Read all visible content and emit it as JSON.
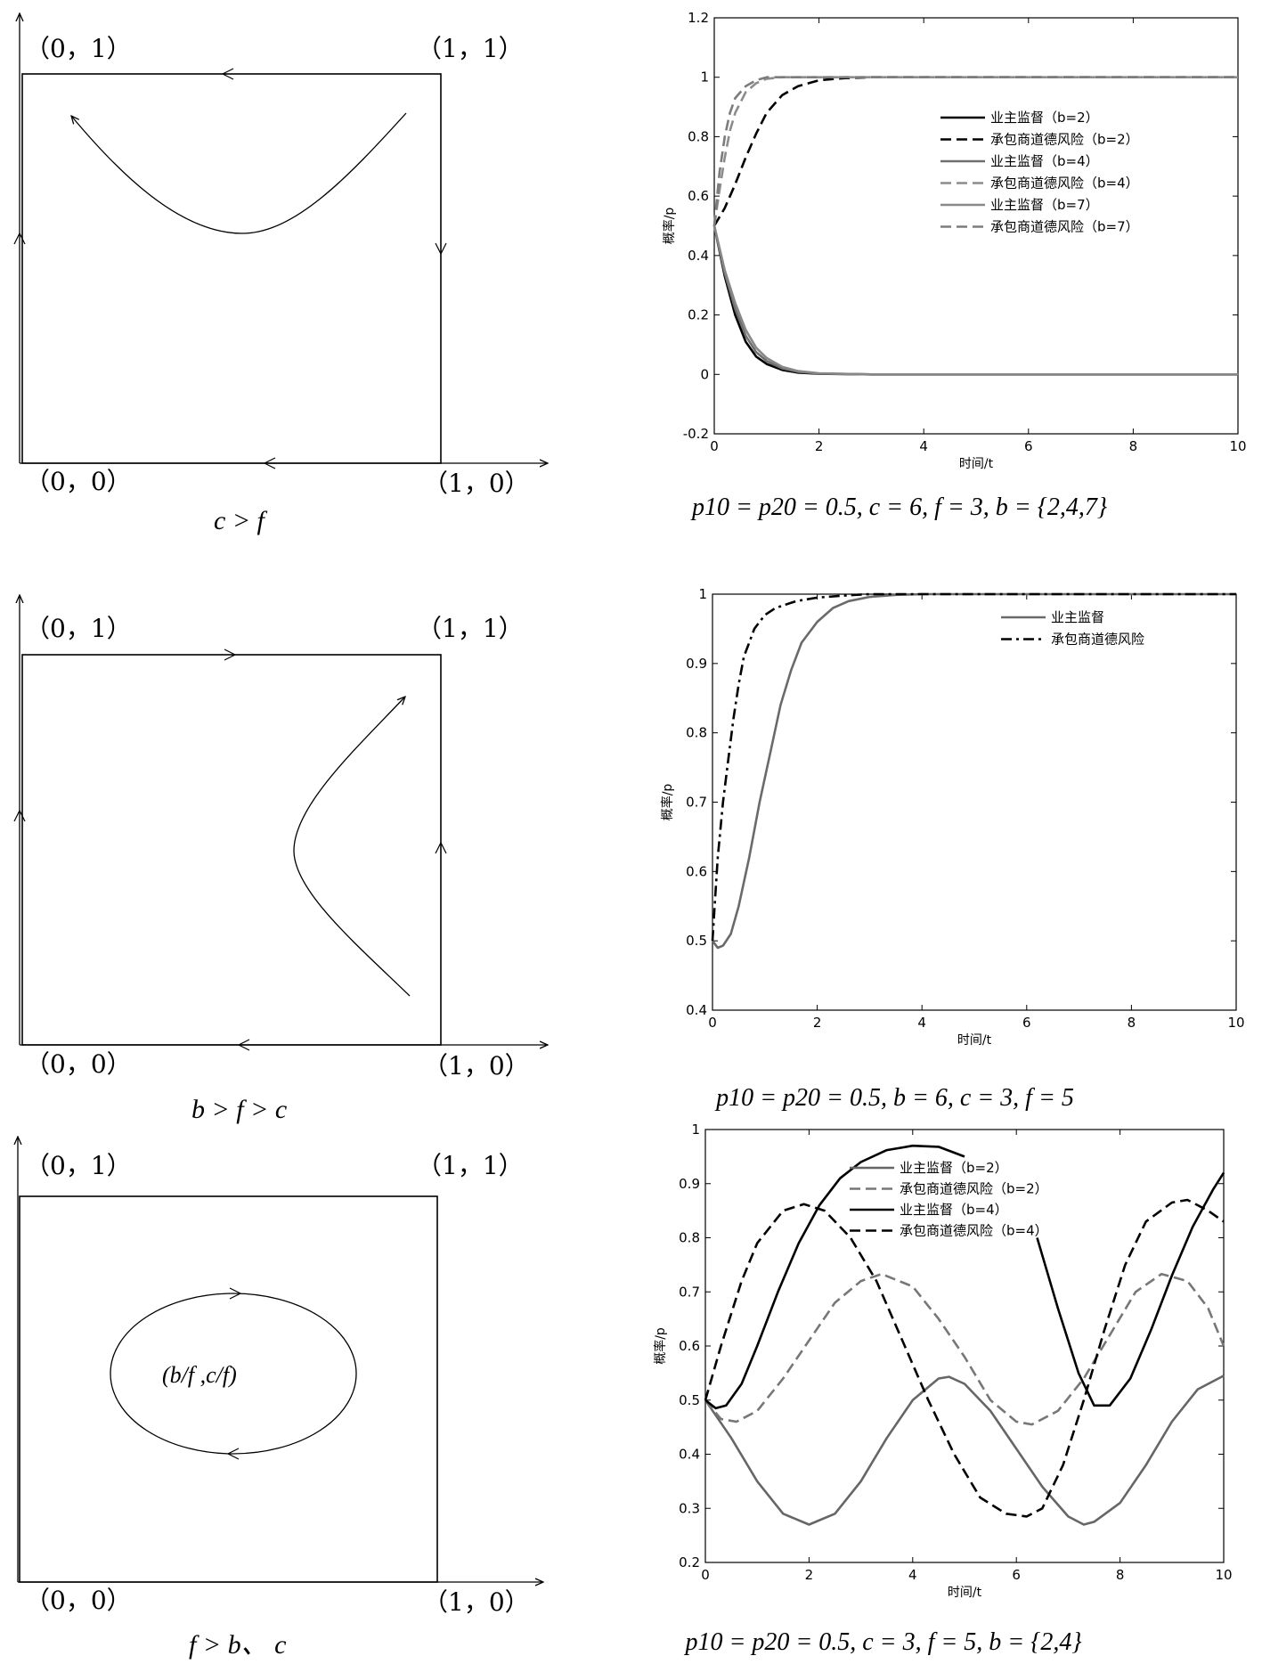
{
  "phase_diagrams": [
    {
      "corner_labels": {
        "top_left": "（0，1）",
        "top_right": "（1，1）",
        "bottom_left": "（0，0）",
        "bottom_right": "（1，0）"
      },
      "condition": "c > f"
    },
    {
      "corner_labels": {
        "top_left": "（0，1）",
        "top_right": "（1，1）",
        "bottom_left": "（0，0）",
        "bottom_right": "（1，0）"
      },
      "condition": "b > f > c"
    },
    {
      "corner_labels": {
        "top_left": "（0，1）",
        "top_right": "（1，1）",
        "bottom_left": "（0，0）",
        "bottom_right": "（1，0）"
      },
      "condition": "f > b、 c",
      "center_label": "(b/f ,c/f)"
    }
  ],
  "chart_data": [
    {
      "type": "line",
      "xlabel": "时间/t",
      "ylabel": "概率/p",
      "xlim": [
        0,
        10
      ],
      "ylim": [
        -0.2,
        1.2
      ],
      "xticks": [
        "0",
        "2",
        "4",
        "6",
        "8",
        "10"
      ],
      "yticks": [
        "-0.2",
        "0",
        "0.2",
        "0.4",
        "0.6",
        "0.8",
        "1",
        "1.2"
      ],
      "legend_position": "upper-right",
      "caption": "p10 = p20 = 0.5, c = 6, f = 3, b = {2,4,7}",
      "series": [
        {
          "name": "业主监督（b=2）",
          "color": "#000000",
          "dash": "solid",
          "x": [
            0,
            0.2,
            0.4,
            0.6,
            0.8,
            1,
            1.3,
            1.6,
            2,
            3,
            4,
            6,
            8,
            10
          ],
          "values": [
            0.5,
            0.33,
            0.2,
            0.11,
            0.06,
            0.035,
            0.015,
            0.006,
            0.002,
            0,
            0,
            0,
            0,
            0
          ]
        },
        {
          "name": "承包商道德风险（b=2）",
          "color": "#000000",
          "dash": "dashed",
          "x": [
            0,
            0.2,
            0.4,
            0.6,
            0.8,
            1,
            1.3,
            1.6,
            2,
            2.5,
            3,
            3.5,
            4,
            6,
            8,
            10
          ],
          "values": [
            0.5,
            0.56,
            0.64,
            0.73,
            0.81,
            0.88,
            0.94,
            0.97,
            0.99,
            0.997,
            1,
            1,
            1,
            1,
            1,
            1
          ]
        },
        {
          "name": "业主监督（b=4）",
          "color": "#6e6e6e",
          "dash": "solid",
          "x": [
            0,
            0.2,
            0.4,
            0.6,
            0.8,
            1,
            1.3,
            1.6,
            2,
            3,
            4,
            6,
            8,
            10
          ],
          "values": [
            0.5,
            0.34,
            0.22,
            0.13,
            0.075,
            0.045,
            0.02,
            0.009,
            0.003,
            0,
            0,
            0,
            0,
            0
          ]
        },
        {
          "name": "承包商道德风险（b=4）",
          "color": "#8c8c8c",
          "dash": "dashed",
          "x": [
            0,
            0.1,
            0.2,
            0.3,
            0.4,
            0.6,
            0.8,
            1,
            1.3,
            1.6,
            2,
            3,
            4,
            6,
            8,
            10
          ],
          "values": [
            0.5,
            0.62,
            0.73,
            0.82,
            0.88,
            0.95,
            0.98,
            0.995,
            1,
            1,
            1,
            1,
            1,
            1,
            1,
            1
          ]
        },
        {
          "name": "业主监督（b=7）",
          "color": "#888888",
          "dash": "solid",
          "x": [
            0,
            0.2,
            0.4,
            0.6,
            0.8,
            1,
            1.3,
            1.6,
            2,
            3,
            4,
            6,
            8,
            10
          ],
          "values": [
            0.5,
            0.35,
            0.24,
            0.15,
            0.09,
            0.055,
            0.025,
            0.011,
            0.004,
            0,
            0,
            0,
            0,
            0
          ]
        },
        {
          "name": "承包商道德风险（b=7）",
          "color": "#7c7c7c",
          "dash": "dashed",
          "x": [
            0,
            0.1,
            0.2,
            0.3,
            0.4,
            0.6,
            0.8,
            1,
            1.3,
            1.6,
            2,
            3,
            4,
            6,
            8,
            10
          ],
          "values": [
            0.5,
            0.68,
            0.8,
            0.88,
            0.93,
            0.97,
            0.99,
            1,
            1,
            1,
            1,
            1,
            1,
            1,
            1,
            1
          ]
        }
      ]
    },
    {
      "type": "line",
      "xlabel": "时间/t",
      "ylabel": "概率/p",
      "xlim": [
        0,
        10
      ],
      "ylim": [
        0.4,
        1
      ],
      "xticks": [
        "0",
        "2",
        "4",
        "6",
        "8",
        "10"
      ],
      "yticks": [
        "0.4",
        "0.5",
        "0.6",
        "0.7",
        "0.8",
        "0.9",
        "1"
      ],
      "legend_position": "upper-right",
      "caption": "p10 = p20 = 0.5, b = 6, c = 3, f = 5",
      "series": [
        {
          "name": "业主监督",
          "color": "#6a6a6a",
          "dash": "solid",
          "x": [
            0,
            0.1,
            0.2,
            0.35,
            0.5,
            0.7,
            0.9,
            1.1,
            1.3,
            1.5,
            1.7,
            2,
            2.3,
            2.6,
            3,
            3.5,
            4,
            5,
            6,
            8,
            10
          ],
          "values": [
            0.5,
            0.49,
            0.493,
            0.51,
            0.55,
            0.62,
            0.7,
            0.77,
            0.84,
            0.89,
            0.93,
            0.96,
            0.98,
            0.99,
            0.996,
            0.999,
            1,
            1,
            1,
            1,
            1
          ]
        },
        {
          "name": "承包商道德风险",
          "color": "#000000",
          "dash": "dashdot",
          "x": [
            0,
            0.05,
            0.1,
            0.2,
            0.3,
            0.4,
            0.5,
            0.6,
            0.7,
            0.8,
            0.9,
            1,
            1.2,
            1.4,
            1.6,
            2,
            2.5,
            3,
            4,
            6,
            8,
            10
          ],
          "values": [
            0.5,
            0.56,
            0.62,
            0.7,
            0.76,
            0.82,
            0.87,
            0.91,
            0.93,
            0.95,
            0.96,
            0.97,
            0.98,
            0.985,
            0.99,
            0.995,
            0.998,
            1,
            1,
            1,
            1,
            1
          ]
        }
      ]
    },
    {
      "type": "line",
      "xlabel": "时间/t",
      "ylabel": "概率/p",
      "xlim": [
        0,
        10
      ],
      "ylim": [
        0.2,
        1
      ],
      "xticks": [
        "0",
        "2",
        "4",
        "6",
        "8",
        "10"
      ],
      "yticks": [
        "0.2",
        "0.3",
        "0.4",
        "0.5",
        "0.6",
        "0.7",
        "0.8",
        "0.9",
        "1"
      ],
      "legend_position": "upper-center",
      "caption": "p10 = p20 = 0.5, c = 3, f = 5, b = {2,4}",
      "series": [
        {
          "name": "业主监督（b=2）",
          "color": "#666666",
          "dash": "solid",
          "x": [
            0,
            0.5,
            1,
            1.5,
            2,
            2.5,
            3,
            3.5,
            4,
            4.5,
            4.7,
            5,
            5.5,
            6,
            6.5,
            7,
            7.3,
            7.5,
            8,
            8.5,
            9,
            9.5,
            10
          ],
          "values": [
            0.5,
            0.43,
            0.35,
            0.29,
            0.27,
            0.29,
            0.35,
            0.43,
            0.5,
            0.54,
            0.543,
            0.53,
            0.48,
            0.41,
            0.34,
            0.285,
            0.27,
            0.275,
            0.31,
            0.38,
            0.46,
            0.52,
            0.545
          ]
        },
        {
          "name": "承包商道德风险（b=2）",
          "color": "#777777",
          "dash": "dashed",
          "x": [
            0,
            0.3,
            0.6,
            1,
            1.5,
            2,
            2.5,
            3,
            3.4,
            4,
            4.5,
            5,
            5.5,
            6,
            6.3,
            6.8,
            7.3,
            7.8,
            8.3,
            8.8,
            9.3,
            9.7,
            10
          ],
          "values": [
            0.5,
            0.465,
            0.46,
            0.48,
            0.54,
            0.61,
            0.68,
            0.72,
            0.733,
            0.71,
            0.65,
            0.58,
            0.5,
            0.46,
            0.455,
            0.48,
            0.54,
            0.62,
            0.7,
            0.733,
            0.72,
            0.67,
            0.6
          ]
        },
        {
          "name": "业主监督（b=4）",
          "color": "#000000",
          "dash": "solid",
          "x": [
            0,
            0.2,
            0.4,
            0.7,
            1,
            1.4,
            1.8,
            2.2,
            2.6,
            3,
            3.5,
            4,
            4.5,
            5
          ],
          "values": [
            0.5,
            0.485,
            0.49,
            0.53,
            0.6,
            0.7,
            0.79,
            0.86,
            0.91,
            0.94,
            0.962,
            0.97,
            0.968,
            0.95
          ],
          "x2": [
            6.4,
            6.8,
            7.2,
            7.5,
            7.8,
            8.2,
            8.6,
            9,
            9.4,
            9.8,
            10
          ],
          "values2": [
            0.8,
            0.67,
            0.55,
            0.49,
            0.49,
            0.54,
            0.63,
            0.73,
            0.82,
            0.89,
            0.92
          ]
        },
        {
          "name": "承包商道德风险（b=4）",
          "color": "#000000",
          "dash": "dashed",
          "x": [
            0,
            0.3,
            0.7,
            1,
            1.5,
            1.9,
            2.3,
            2.8,
            3.3,
            3.8,
            4.3,
            4.8,
            5.3,
            5.8,
            6.2,
            6.5,
            6.9,
            7.3,
            7.7,
            8.1,
            8.5,
            9,
            9.3,
            9.7,
            10
          ],
          "values": [
            0.5,
            0.6,
            0.72,
            0.79,
            0.85,
            0.862,
            0.85,
            0.8,
            0.72,
            0.61,
            0.5,
            0.4,
            0.32,
            0.29,
            0.285,
            0.3,
            0.38,
            0.5,
            0.63,
            0.75,
            0.83,
            0.865,
            0.87,
            0.85,
            0.83
          ]
        }
      ]
    }
  ]
}
